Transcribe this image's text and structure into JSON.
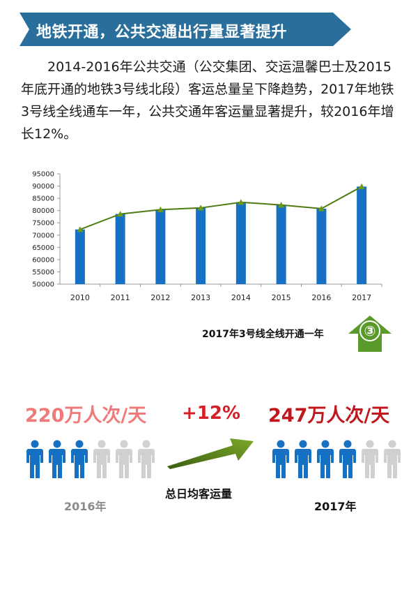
{
  "header": {
    "title": "地铁开通，公共交通出行量显著提升"
  },
  "intro": "2014-2016年公共交通（公交集团、交运温馨巴士及2015年底开通的地铁3号线北段）客运总量呈下降趋势，2017年地铁3号线全线通车一年，公共交通年客运量显著提升，较2016年增长12%。",
  "colors": {
    "banner": "#2a6f9c",
    "bar": "#1670c4",
    "line": "#4f7c12",
    "marker": "#6a9b1a",
    "up_arrow": "#5a9a2a",
    "person_on": "#1670c4",
    "person_off": "#d0d0d0"
  },
  "chart_data": {
    "type": "bar",
    "categories": [
      "2010",
      "2011",
      "2012",
      "2013",
      "2014",
      "2015",
      "2016",
      "2017"
    ],
    "values": [
      72300,
      78600,
      80400,
      81100,
      83400,
      82300,
      80800,
      89800
    ],
    "overlay_line": true,
    "yticks": [
      "95000",
      "90000",
      "85000",
      "80000",
      "75000",
      "70000",
      "65000",
      "60000",
      "55000",
      "50000"
    ],
    "ylim": [
      50000,
      95000
    ],
    "grid": false
  },
  "annotation": {
    "text": "2017年3号线全线开通一年",
    "badge": "③"
  },
  "comparison": {
    "left": {
      "value": "220万人次/天",
      "year": "2016年",
      "filled_icons": 3,
      "total_icons": 6
    },
    "right": {
      "value": "247万人次/天",
      "year": "2017年",
      "filled_icons": 4,
      "total_icons": 6
    },
    "change": "+12%",
    "label": "总日均客运量"
  }
}
